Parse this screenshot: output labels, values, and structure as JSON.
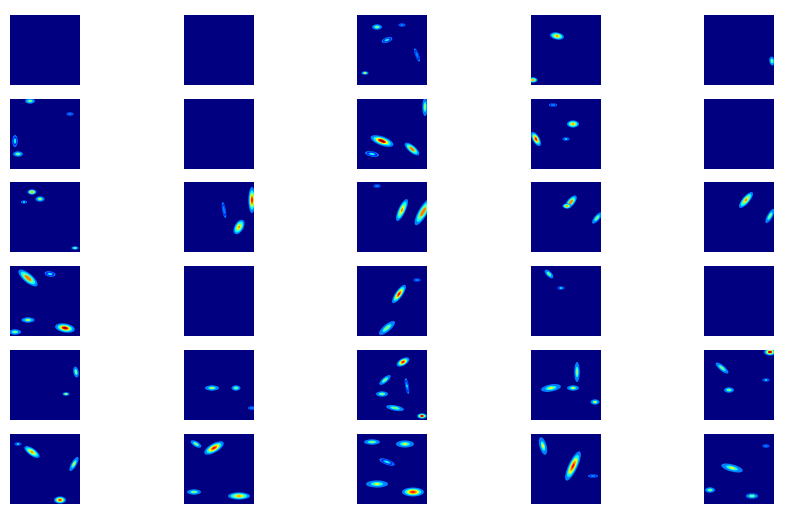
{
  "figure": {
    "rows": 6,
    "cols": 5,
    "colormap": [
      "#000080",
      "#0000ff",
      "#0080ff",
      "#00ffff",
      "#80ff80",
      "#ffff00",
      "#ff8000",
      "#ff0000",
      "#800000"
    ],
    "background": "#ffffff",
    "tile_background": "#000080"
  }
}
